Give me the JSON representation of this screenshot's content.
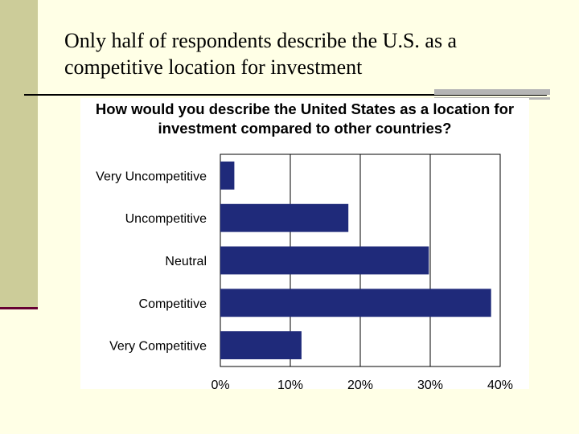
{
  "slide": {
    "title": "Only half of respondents describe the U.S. as a competitive location for investment"
  },
  "chart_data": {
    "type": "bar",
    "orientation": "horizontal",
    "title": "How would you describe the United States as a location for investment compared to other countries?",
    "categories": [
      "Very Uncompetitive",
      "Uncompetitive",
      "Neutral",
      "Competitive",
      "Very Competitive"
    ],
    "values": [
      2,
      18.3,
      29.8,
      38.7,
      11.6
    ],
    "xlim": [
      0,
      40
    ],
    "xticks": [
      "0%",
      "10%",
      "20%",
      "30%",
      "40%"
    ],
    "tick_values": [
      0,
      10,
      20,
      30,
      40
    ],
    "grid": true,
    "bar_color": "#1f2a7a"
  }
}
